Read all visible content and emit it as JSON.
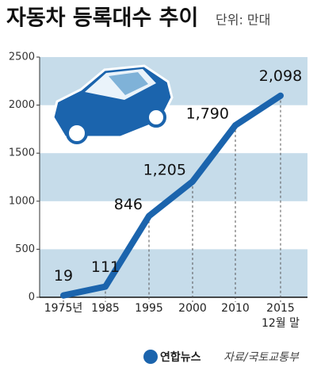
{
  "chart_data": {
    "type": "line",
    "title": "자동차 등록대수 추이",
    "subtitle": "단위: 만대",
    "categories": [
      "1975년",
      "1985",
      "1995",
      "2000",
      "2010",
      "2015"
    ],
    "last_category_note": "12월 말",
    "values": [
      19,
      111,
      846,
      1205,
      1790,
      2098
    ],
    "value_labels": [
      "19",
      "111",
      "846",
      "1,205",
      "1,790",
      "2,098"
    ],
    "color": "#1b64ad",
    "band_color": "#c6dcea",
    "ylim": [
      0,
      2500
    ],
    "yticks": [
      0,
      500,
      1000,
      1500,
      2000,
      2500
    ],
    "logo": "연합뉴스",
    "source": "자료/국토교통부"
  }
}
